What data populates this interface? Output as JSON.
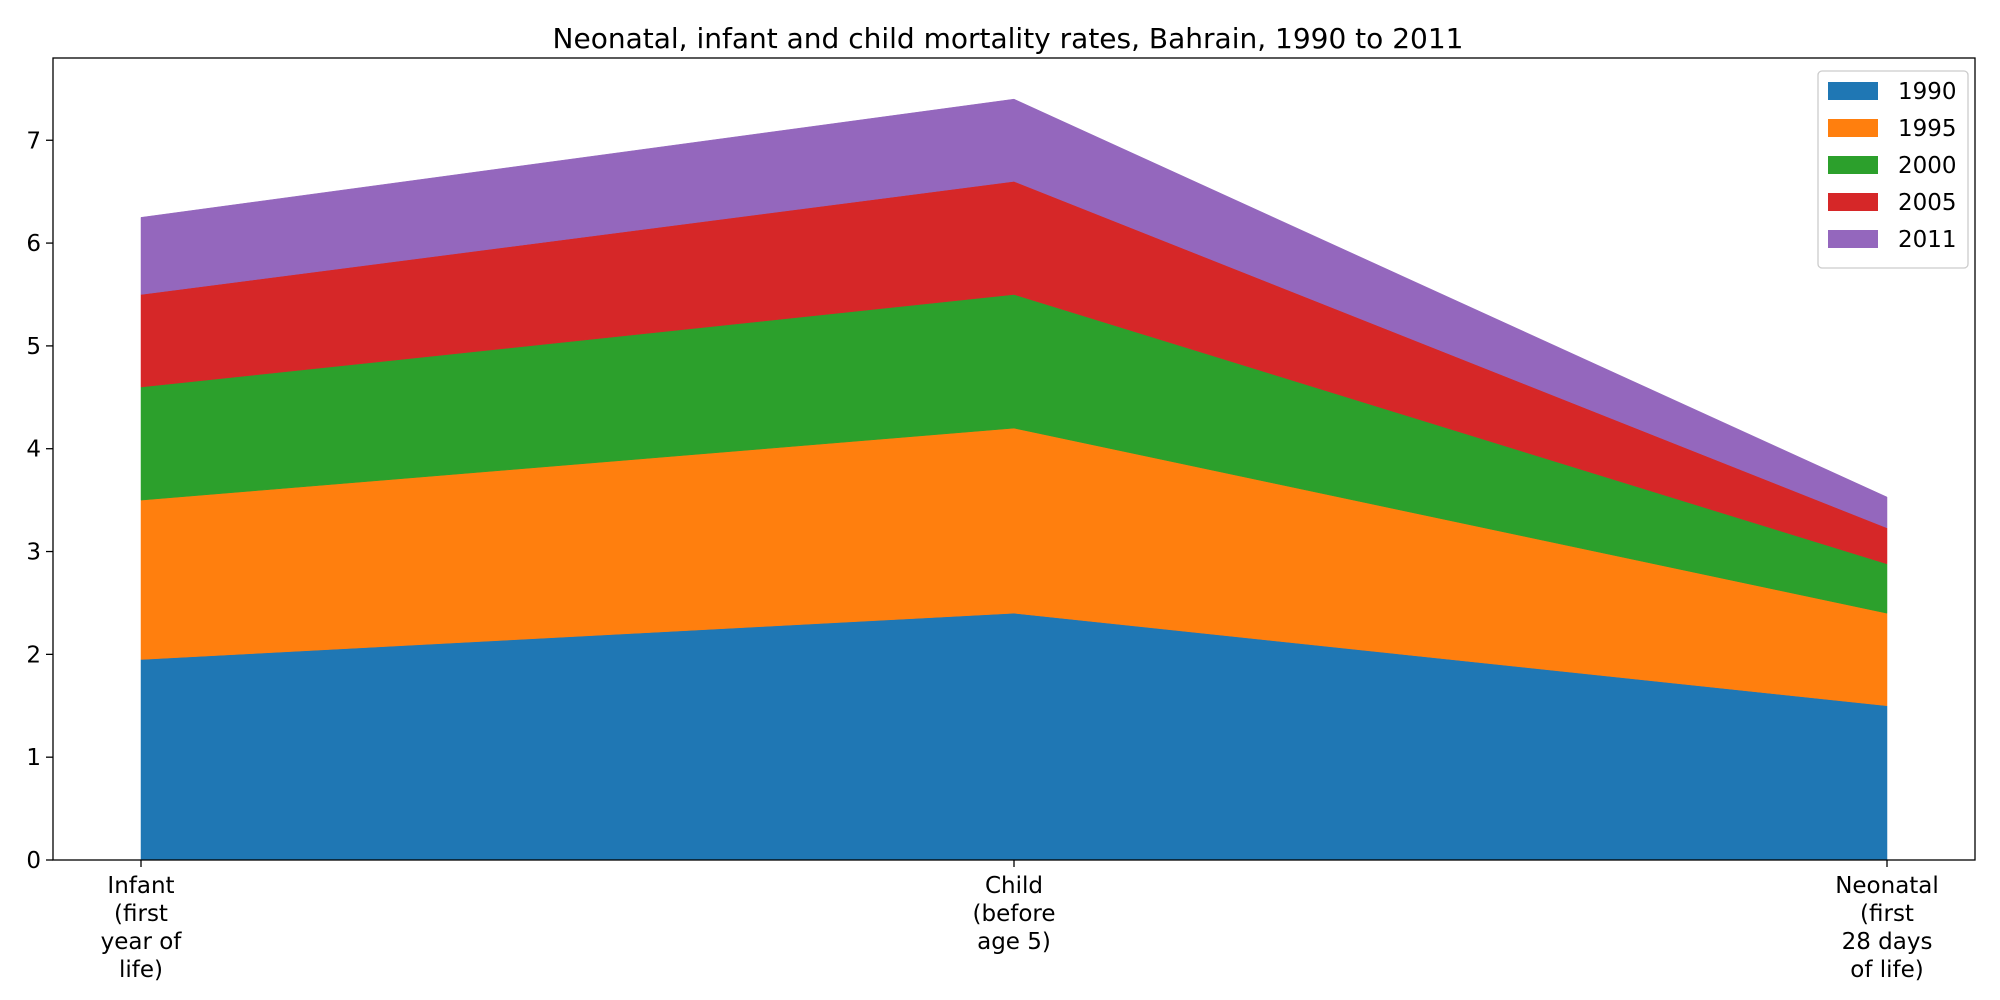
{
  "chart_data": {
    "type": "area",
    "stacked": true,
    "title": "Neonatal, infant and child mortality rates, Bahrain, 1990 to 2011",
    "xlabel": "",
    "ylabel": "",
    "categories": [
      [
        "Infant",
        "(first",
        "year of",
        "life)"
      ],
      [
        "Child",
        "(before",
        "age 5)"
      ],
      [
        "Neonatal",
        "(first",
        "28 days",
        "of life)"
      ]
    ],
    "series": [
      {
        "name": "1990",
        "values": [
          1.95,
          2.4,
          1.5
        ],
        "color": "#1f77b4"
      },
      {
        "name": "1995",
        "values": [
          1.55,
          1.8,
          0.9
        ],
        "color": "#ff7f0e"
      },
      {
        "name": "2000",
        "values": [
          1.1,
          1.3,
          0.48
        ],
        "color": "#2ca02c"
      },
      {
        "name": "2005",
        "values": [
          0.9,
          1.1,
          0.35
        ],
        "color": "#d62728"
      },
      {
        "name": "2011",
        "values": [
          0.75,
          0.8,
          0.3
        ],
        "color": "#9467bd"
      }
    ],
    "ylim": [
      0,
      7.8
    ],
    "yticks": [
      0,
      1,
      2,
      3,
      4,
      5,
      6,
      7
    ],
    "grid": false,
    "legend_position": "top-right"
  }
}
